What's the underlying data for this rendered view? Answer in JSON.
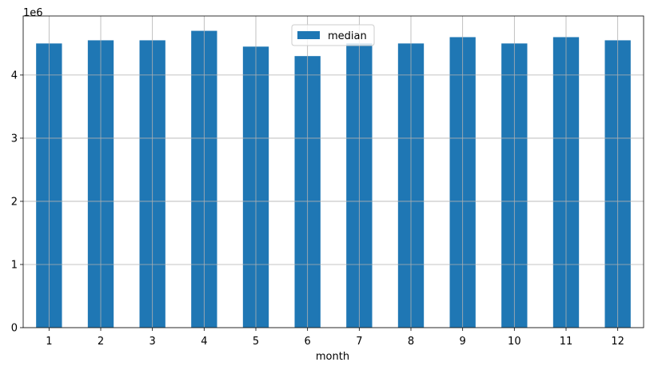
{
  "chart_data": {
    "type": "bar",
    "title": "",
    "xlabel": "month",
    "ylabel": "",
    "y_scale_label": "1e6",
    "categories": [
      "1",
      "2",
      "3",
      "4",
      "5",
      "6",
      "7",
      "8",
      "9",
      "10",
      "11",
      "12"
    ],
    "series": [
      {
        "name": "median",
        "color": "#1f77b4",
        "values": [
          4500000,
          4550000,
          4550000,
          4700000,
          4450000,
          4300000,
          4500000,
          4500000,
          4600000,
          4500000,
          4600000,
          4550000
        ]
      }
    ],
    "ylim": [
      0,
      4935000
    ],
    "yticks": [
      0,
      1,
      2,
      3,
      4
    ],
    "yticks_scale": 1000000,
    "grid": true,
    "legend_position": "top-center"
  }
}
